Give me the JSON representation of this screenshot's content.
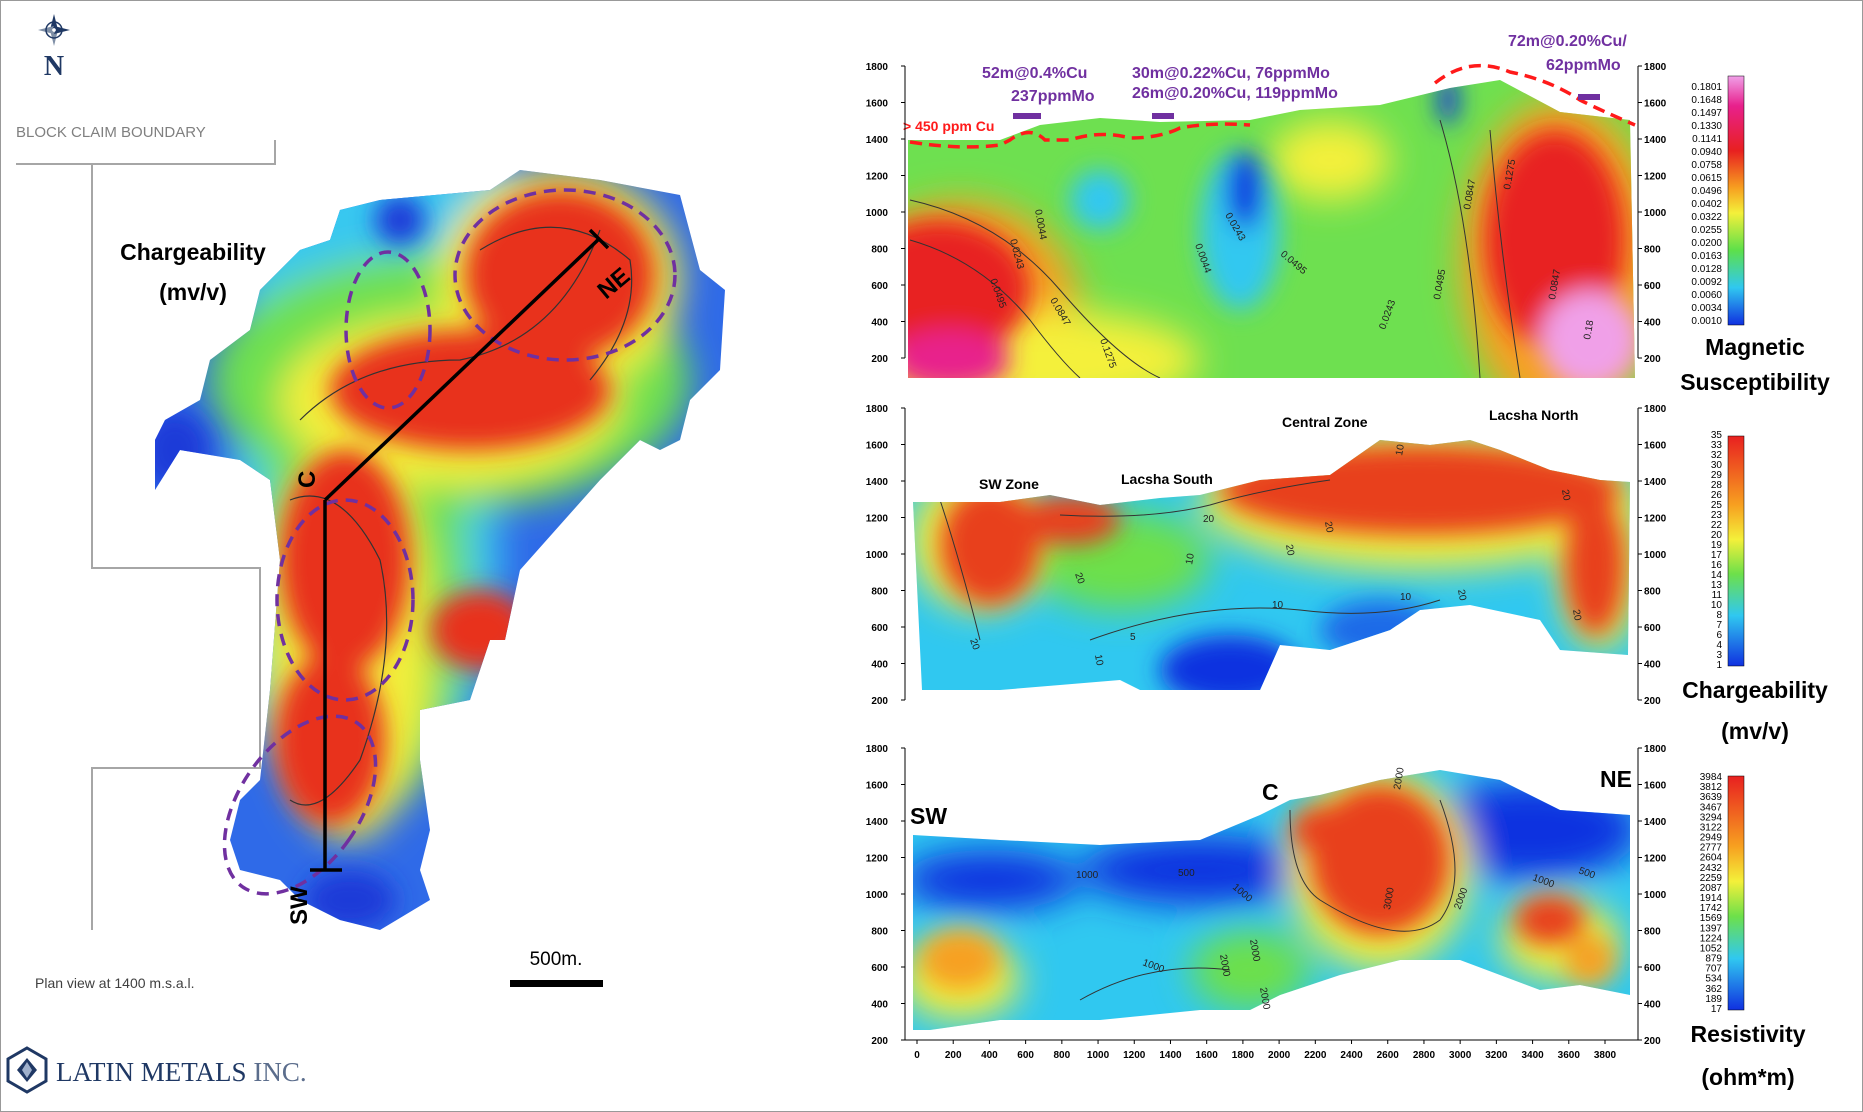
{
  "north": {
    "label": "N"
  },
  "plan_map": {
    "boundary_label": "BLOCK CLAIM BOUNDARY",
    "title_line1": "Chargeability",
    "title_line2": "(mv/v)",
    "point_c": "C",
    "point_ne": "NE",
    "point_sw": "SW",
    "scale_label": "500m.",
    "caption": "Plan view at 1400 m.s.a.l."
  },
  "logo": {
    "company": "LATIN METALS",
    "suffix": "INC."
  },
  "sections": {
    "elevation_ticks": [
      "1800",
      "1600",
      "1400",
      "1200",
      "1000",
      "800",
      "600",
      "400",
      "200"
    ],
    "distance_ticks": [
      "0",
      "200",
      "400",
      "600",
      "800",
      "1000",
      "1200",
      "1400",
      "1600",
      "1800",
      "2000",
      "2200",
      "2400",
      "2600",
      "2800",
      "3000",
      "3200",
      "3400",
      "3600",
      "3800"
    ]
  },
  "magnetic": {
    "title_line1": "Magnetic",
    "title_line2": "Susceptibility",
    "cu_threshold": "> 450 ppm Cu",
    "intercept1_line1": "52m@0.4%Cu",
    "intercept1_line2": "237ppmMo",
    "intercept2_line1": "30m@0.22%Cu, 76ppmMo",
    "intercept2_line2": "26m@0.20%Cu, 119ppmMo",
    "intercept3_line1": "72m@0.20%Cu/",
    "intercept3_line2": "62ppmMo",
    "contour_labels": [
      "0.0044",
      "0.0243",
      "0.0495",
      "0.0847",
      "0.1275",
      "0.0044",
      "0.0243",
      "0.0495",
      "0.0243",
      "0.0495",
      "0.0847",
      "0.1275",
      "0.0847",
      "0.18"
    ],
    "legend": [
      "0.1801",
      "0.1648",
      "0.1497",
      "0.1330",
      "0.1141",
      "0.0940",
      "0.0758",
      "0.0615",
      "0.0496",
      "0.0402",
      "0.0322",
      "0.0255",
      "0.0200",
      "0.0163",
      "0.0128",
      "0.0092",
      "0.0060",
      "0.0034",
      "0.0010"
    ]
  },
  "chargeability": {
    "title_line1": "Chargeability",
    "title_line2": "(mv/v)",
    "zone_sw": "SW Zone",
    "zone_lacsha_south": "Lacsha South",
    "zone_central": "Central Zone",
    "zone_lacsha_north": "Lacsha North",
    "contour_labels": [
      "20",
      "20",
      "10",
      "20",
      "20",
      "10",
      "5",
      "10",
      "20",
      "10",
      "20",
      "20",
      "10",
      "20"
    ],
    "legend": [
      "35",
      "33",
      "32",
      "30",
      "29",
      "28",
      "26",
      "25",
      "23",
      "22",
      "20",
      "19",
      "17",
      "16",
      "14",
      "13",
      "11",
      "10",
      "8",
      "7",
      "6",
      "4",
      "3",
      "1"
    ]
  },
  "resistivity": {
    "title_line1": "Resistivity",
    "title_line2": "(ohm*m)",
    "point_sw": "SW",
    "point_c": "C",
    "point_ne": "NE",
    "contour_labels": [
      "1000",
      "500",
      "1000",
      "2000",
      "1000",
      "2000",
      "2000",
      "3000",
      "2000",
      "2000",
      "1000",
      "500"
    ],
    "legend": [
      "3984",
      "3812",
      "3639",
      "3467",
      "3294",
      "3122",
      "2949",
      "2777",
      "2604",
      "2432",
      "2259",
      "2087",
      "1914",
      "1742",
      "1569",
      "1397",
      "1224",
      "1052",
      "879",
      "707",
      "534",
      "362",
      "189",
      "17"
    ]
  }
}
